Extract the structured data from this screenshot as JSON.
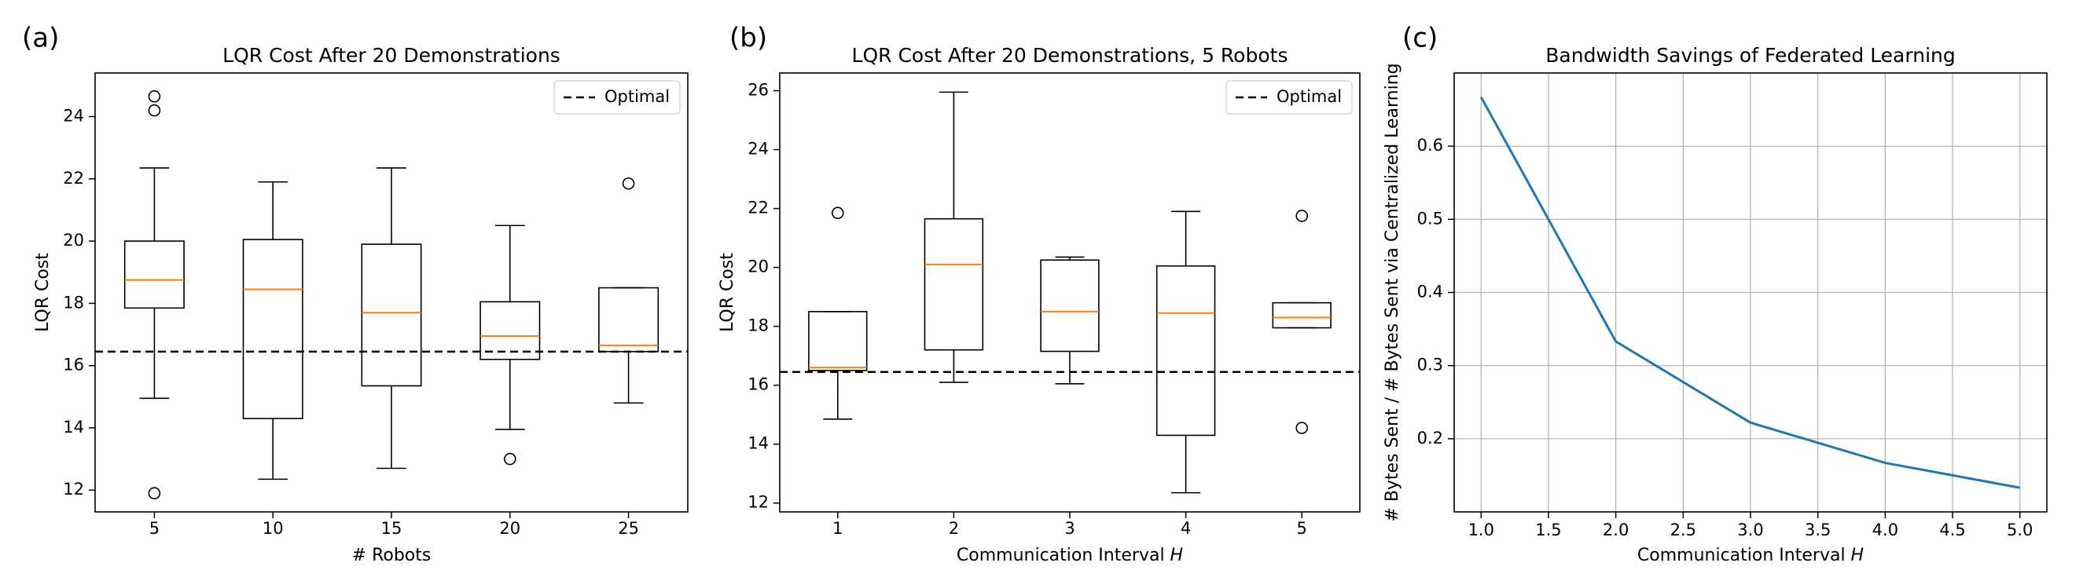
{
  "figure": {
    "panels": [
      {
        "label": "(a)"
      },
      {
        "label": "(b)"
      },
      {
        "label": "(c)"
      }
    ]
  },
  "chart_data": [
    {
      "type": "box",
      "panel_label": "(a)",
      "title": "LQR Cost After 20 Demonstrations",
      "xlabel": "# Robots",
      "ylabel": "LQR Cost",
      "ylim": [
        11.3,
        25.4
      ],
      "yticks": [
        12,
        14,
        16,
        18,
        20,
        22,
        24
      ],
      "grid": false,
      "legend": {
        "placement": "top-right",
        "entries": [
          "Optimal"
        ]
      },
      "reference_line": {
        "label": "Optimal",
        "y": 16.45,
        "style": "dashed"
      },
      "categories": [
        "5",
        "10",
        "15",
        "20",
        "25"
      ],
      "boxes": [
        {
          "category": "5",
          "whisker_low": 14.95,
          "q1": 17.85,
          "median": 18.75,
          "q3": 20.0,
          "whisker_high": 22.35,
          "outliers": [
            11.9,
            24.2,
            24.65
          ]
        },
        {
          "category": "10",
          "whisker_low": 12.35,
          "q1": 14.3,
          "median": 18.45,
          "q3": 20.05,
          "whisker_high": 21.9,
          "outliers": []
        },
        {
          "category": "15",
          "whisker_low": 12.7,
          "q1": 15.35,
          "median": 17.7,
          "q3": 19.9,
          "whisker_high": 22.35,
          "outliers": []
        },
        {
          "category": "20",
          "whisker_low": 13.95,
          "q1": 16.2,
          "median": 16.95,
          "q3": 18.05,
          "whisker_high": 20.5,
          "outliers": [
            13.0
          ]
        },
        {
          "category": "25",
          "whisker_low": 14.8,
          "q1": 16.45,
          "median": 16.65,
          "q3": 18.5,
          "whisker_high": 18.5,
          "outliers": [
            21.85
          ]
        }
      ],
      "colors": {
        "box": "#000000",
        "median": "#ff7f0e",
        "optimal": "#000000"
      }
    },
    {
      "type": "box",
      "panel_label": "(b)",
      "title": "LQR Cost After 20 Demonstrations, 5 Robots",
      "xlabel": "Communication Interval H",
      "ylabel": "LQR Cost",
      "ylim": [
        11.7,
        26.6
      ],
      "yticks": [
        12,
        14,
        16,
        18,
        20,
        22,
        24,
        26
      ],
      "grid": false,
      "legend": {
        "placement": "top-right",
        "entries": [
          "Optimal"
        ]
      },
      "reference_line": {
        "label": "Optimal",
        "y": 16.45,
        "style": "dashed"
      },
      "categories": [
        "1",
        "2",
        "3",
        "4",
        "5"
      ],
      "boxes": [
        {
          "category": "1",
          "whisker_low": 14.85,
          "q1": 16.5,
          "median": 16.6,
          "q3": 18.5,
          "whisker_high": 18.5,
          "outliers": [
            21.85
          ]
        },
        {
          "category": "2",
          "whisker_low": 16.1,
          "q1": 17.2,
          "median": 20.1,
          "q3": 21.65,
          "whisker_high": 25.95,
          "outliers": []
        },
        {
          "category": "3",
          "whisker_low": 16.05,
          "q1": 17.15,
          "median": 18.5,
          "q3": 20.25,
          "whisker_high": 20.35,
          "outliers": []
        },
        {
          "category": "4",
          "whisker_low": 12.35,
          "q1": 14.3,
          "median": 18.45,
          "q3": 20.05,
          "whisker_high": 21.9,
          "outliers": []
        },
        {
          "category": "5",
          "whisker_low": 17.95,
          "q1": 17.95,
          "median": 18.3,
          "q3": 18.8,
          "whisker_high": 18.8,
          "outliers": [
            14.55,
            21.75
          ]
        }
      ],
      "colors": {
        "box": "#000000",
        "median": "#ff7f0e",
        "optimal": "#000000"
      }
    },
    {
      "type": "line",
      "panel_label": "(c)",
      "title": "Bandwidth Savings of Federated Learning",
      "xlabel": "Communication Interval H",
      "ylabel": "# Bytes Sent / # Bytes Sent via Centralized Learning",
      "xlim": [
        0.8,
        5.2
      ],
      "ylim": [
        0.1,
        0.7
      ],
      "xticks": [
        "1.0",
        "1.5",
        "2.0",
        "2.5",
        "3.0",
        "3.5",
        "4.0",
        "4.5",
        "5.0"
      ],
      "yticks": [
        "0.2",
        "0.3",
        "0.4",
        "0.5",
        "0.6"
      ],
      "grid": true,
      "x": [
        1,
        2,
        3,
        4,
        5
      ],
      "y": [
        0.667,
        0.333,
        0.222,
        0.167,
        0.133
      ],
      "colors": {
        "line": "#1f77b4",
        "grid": "#b0b0b0"
      }
    }
  ]
}
